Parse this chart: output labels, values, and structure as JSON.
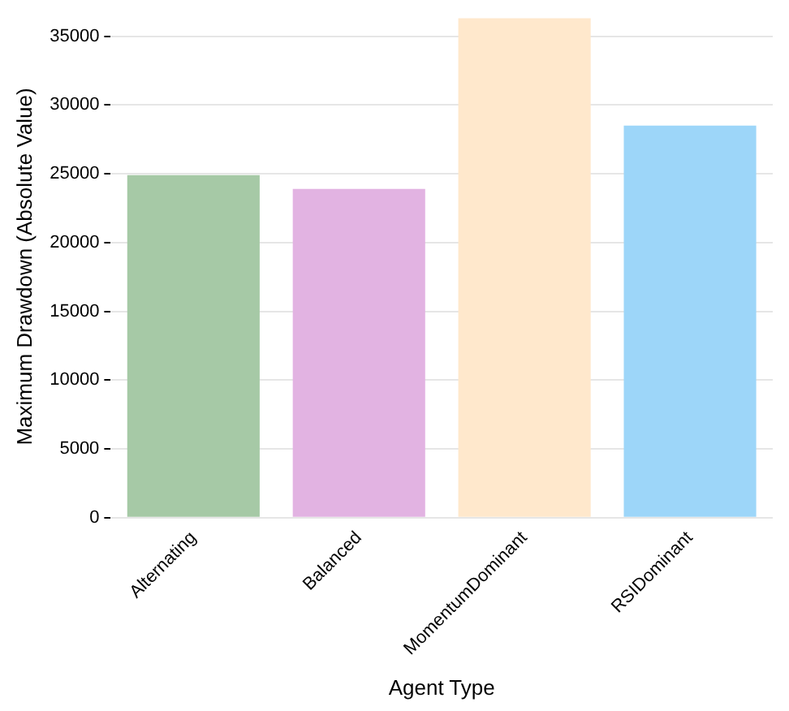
{
  "chart_data": {
    "type": "bar",
    "xlabel": "Agent Type",
    "ylabel": "Maximum Drawdown (Absolute Value)",
    "categories": [
      "Alternating",
      "Balanced",
      "MomentumDominant",
      "RSIDominant"
    ],
    "values": [
      24900,
      23900,
      36300,
      28500
    ],
    "colors": [
      "#a6c9a6",
      "#e2b3e2",
      "#ffe8cc",
      "#9dd6f9"
    ],
    "ylim": [
      0,
      36500
    ],
    "yticks": [
      0,
      5000,
      10000,
      15000,
      20000,
      25000,
      30000,
      35000
    ],
    "grid": "y"
  }
}
